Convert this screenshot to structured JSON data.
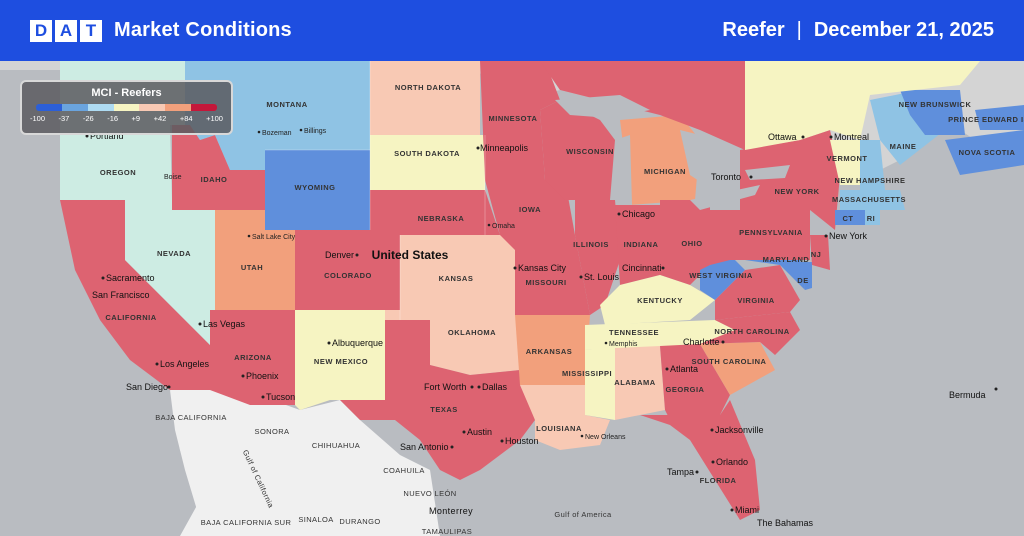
{
  "header": {
    "logo_letters": [
      "D",
      "A",
      "T"
    ],
    "title": "Market Conditions",
    "equipment": "Reefer",
    "separator": "|",
    "date": "December 21, 2025"
  },
  "legend": {
    "title": "MCI - Reefers",
    "ticks": [
      "-100",
      "-37",
      "-26",
      "-16",
      "+9",
      "+42",
      "+84",
      "+100"
    ],
    "colors": [
      "#3b6fe0",
      "#6aa4de",
      "#aedbf2",
      "#f6f4c2",
      "#f8c9b4",
      "#f2a07c",
      "#e25863",
      "#c4173a"
    ]
  },
  "colors": {
    "header_bg": "#1e4ee0",
    "water": "#b9bcc1",
    "mexico_land": "#f0f0f0",
    "canada_land": "#d4d4d4",
    "strong_red": "#dd6371",
    "salmon": "#f2a07c",
    "peach": "#f8c9b4",
    "pale_yellow": "#f6f4c2",
    "mint": "#cdece3",
    "light_blue": "#8fc3e4",
    "mid_blue": "#5f8fdc"
  },
  "country_label": "United States",
  "states": [
    "MONTANA",
    "NORTH DAKOTA",
    "MINNESOTA",
    "WISCONSIN",
    "MICHIGAN",
    "SOUTH DAKOTA",
    "WYOMING",
    "IDAHO",
    "OREGON",
    "NEVADA",
    "UTAH",
    "COLORADO",
    "NEBRASKA",
    "IOWA",
    "ILLINOIS",
    "INDIANA",
    "OHIO",
    "PENNSYLVANIA",
    "NEW YORK",
    "KANSAS",
    "MISSOURI",
    "KENTUCKY",
    "CALIFORNIA",
    "ARIZONA",
    "NEW MEXICO",
    "OKLAHOMA",
    "ARKANSAS",
    "TENNESSEE",
    "MISSISSIPPI",
    "ALABAMA",
    "GEORGIA",
    "TEXAS",
    "LOUISIANA",
    "FLORIDA",
    "NORTH CAROLINA",
    "SOUTH CAROLINA",
    "VIRGINIA",
    "WEST VIRGINIA",
    "MARYLAND",
    "NJ",
    "DE",
    "CT",
    "RI",
    "VERMONT",
    "NEW HAMPSHIRE",
    "MASSACHUSETTS",
    "MAINE",
    "NEW BRUNSWICK",
    "PRINCE EDWARD ISLAND",
    "NOVA SCOTIA"
  ],
  "cities": [
    "Portland",
    "Bozeman",
    "Billings",
    "Boise",
    "Minneapolis",
    "Ottawa",
    "Montreal",
    "Toronto",
    "Chicago",
    "Omaha",
    "Salt Lake City",
    "Denver",
    "Kansas City",
    "St. Louis",
    "Cincinnati",
    "Sacramento",
    "San Francisco",
    "Las Vegas",
    "Albuquerque",
    "Los Angeles",
    "Phoenix",
    "San Diego",
    "Tucson",
    "Memphis",
    "Charlotte",
    "Atlanta",
    "Fort Worth",
    "Dallas",
    "Austin",
    "San Antonio",
    "Houston",
    "New Orleans",
    "Jacksonville",
    "Orlando",
    "Tampa",
    "Miami",
    "New York",
    "Bermuda",
    "The Bahamas"
  ],
  "regions": [
    "BAJA CALIFORNIA",
    "SONORA",
    "CHIHUAHUA",
    "COAHUILA",
    "NUEVO LEÓN",
    "BAJA CALIFORNIA SUR",
    "SINALOA",
    "DURANGO",
    "TAMAULIPAS",
    "Monterrey",
    "Gulf of America",
    "Gulf of California"
  ]
}
